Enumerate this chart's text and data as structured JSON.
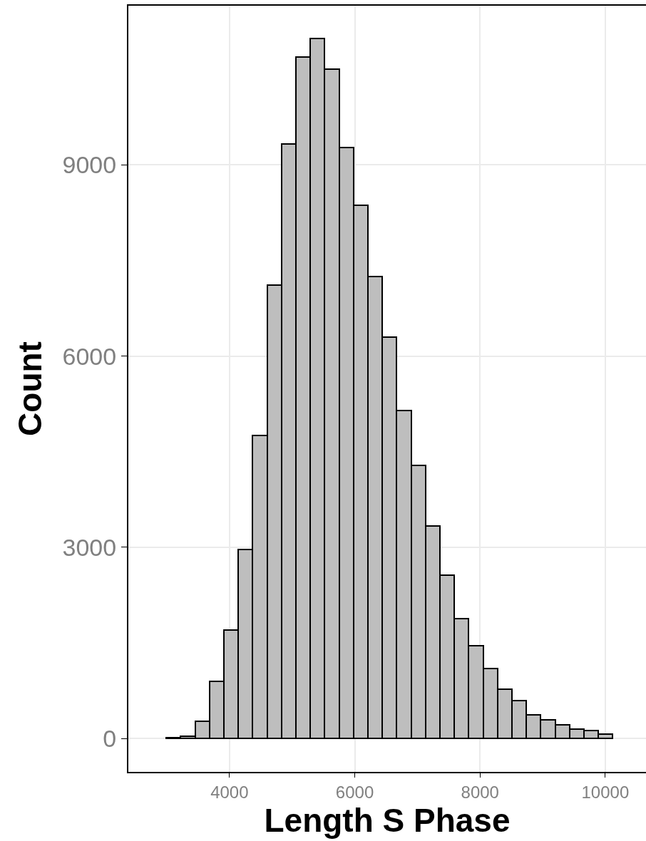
{
  "chart_data": {
    "type": "histogram",
    "xlabel": "Length S Phase",
    "ylabel": "Count",
    "bins": [
      2990,
      3220,
      3450,
      3680,
      3910,
      4140,
      4370,
      4600,
      4830,
      5060,
      5290,
      5520,
      5750,
      5980,
      6210,
      6440,
      6670,
      6900,
      7130,
      7360,
      7590,
      7820,
      8050,
      8280,
      8510,
      8740,
      8970,
      9200,
      9430,
      9660,
      9890,
      10120
    ],
    "values": [
      10,
      30,
      270,
      900,
      1700,
      2970,
      4750,
      7120,
      9330,
      10700,
      10980,
      10500,
      9270,
      8370,
      7250,
      6300,
      5150,
      4280,
      3330,
      2560,
      1880,
      1450,
      1100,
      770,
      590,
      370,
      290,
      210,
      150,
      120,
      70
    ],
    "color": "#bebebe",
    "xlim": [
      2385,
      10650
    ],
    "xticks": [
      4000,
      6000,
      8000,
      10000
    ],
    "ylim": [
      -525,
      11500
    ],
    "yticks": [
      0,
      3000,
      6000,
      9000
    ],
    "grid": true
  }
}
